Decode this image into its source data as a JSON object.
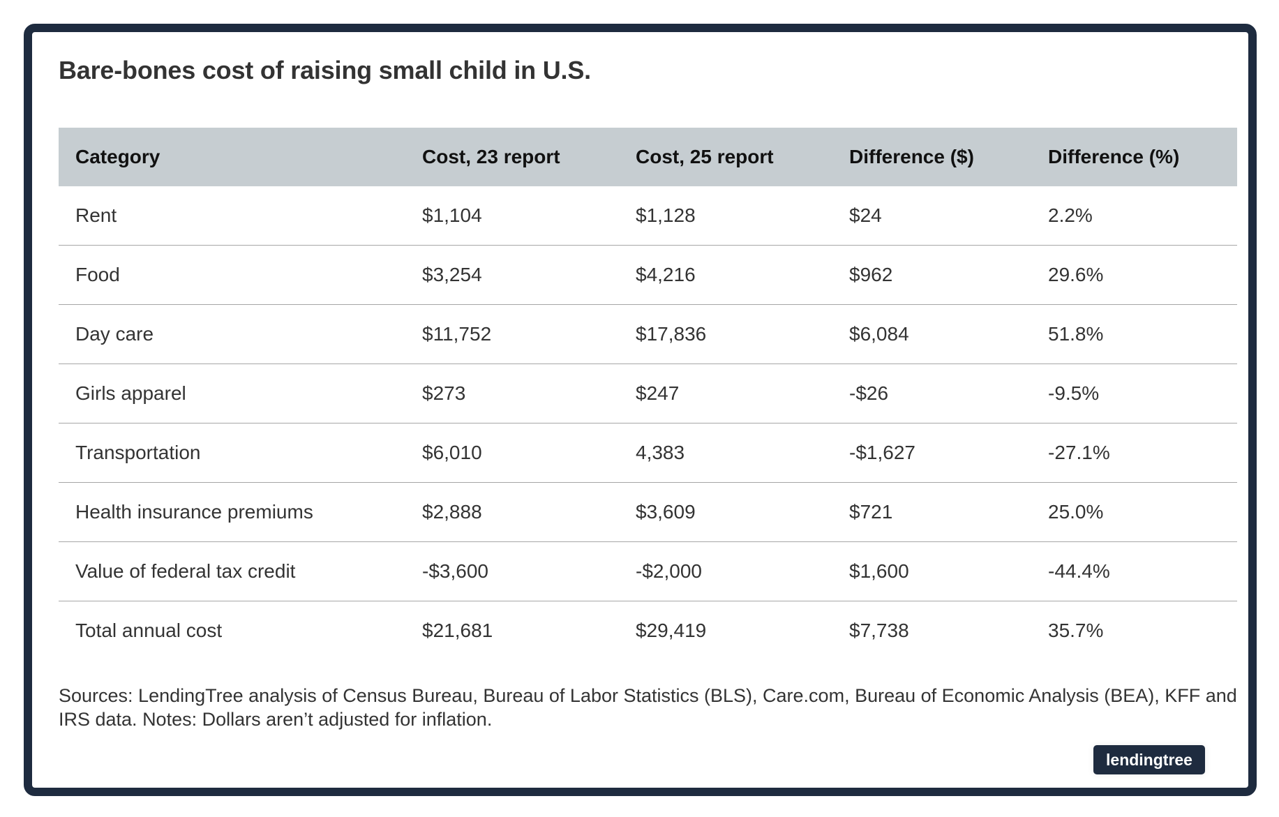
{
  "title": "Bare-bones cost of raising small child in U.S.",
  "chart_data": {
    "type": "table",
    "title": "Bare-bones cost of raising small child in U.S.",
    "columns": [
      "Category",
      "Cost, 23 report",
      "Cost, 25 report",
      "Difference ($)",
      "Difference (%)"
    ],
    "rows": [
      [
        "Rent",
        "$1,104",
        "$1,128",
        "$24",
        "2.2%"
      ],
      [
        "Food",
        "$3,254",
        "$4,216",
        "$962",
        "29.6%"
      ],
      [
        "Day care",
        "$11,752",
        "$17,836",
        "$6,084",
        "51.8%"
      ],
      [
        "Girls apparel",
        "$273",
        "$247",
        "-$26",
        "-9.5%"
      ],
      [
        "Transportation",
        "$6,010",
        "4,383",
        "-$1,627",
        "-27.1%"
      ],
      [
        "Health insurance premiums",
        "$2,888",
        "$3,609",
        "$721",
        "25.0%"
      ],
      [
        "Value of federal tax credit",
        "-$3,600",
        "-$2,000",
        "$1,600",
        "-44.4%"
      ],
      [
        "Total annual cost",
        "$21,681",
        "$29,419",
        "$7,738",
        "35.7%"
      ]
    ]
  },
  "sources": "Sources: LendingTree analysis of Census Bureau, Bureau of Labor Statistics (BLS), Care.com, Bureau of Economic Analysis (BEA), KFF and IRS data. Notes: Dollars aren’t adjusted for inflation.",
  "logo": "lendingtree",
  "colors": {
    "frame": "#1e2b3f",
    "header_background": "#c6cdd1",
    "row_divider": "#a6a6a6"
  }
}
